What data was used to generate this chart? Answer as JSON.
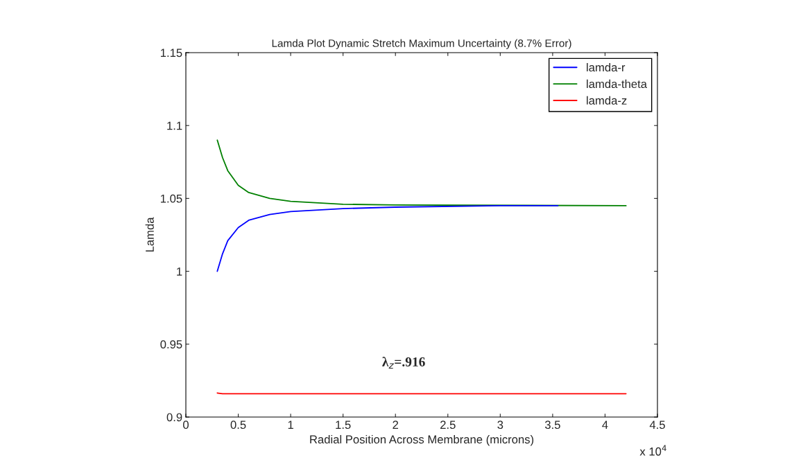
{
  "chart_data": {
    "type": "line",
    "title": "Lamda Plot Dynamic Stretch Maximum Uncertainty (8.7% Error)",
    "xlabel": "Radial Position Across Membrane (microns)",
    "ylabel": "Lamda",
    "xlim": [
      0,
      4.5
    ],
    "xticks": [
      0,
      0.5,
      1,
      1.5,
      2,
      2.5,
      3,
      3.5,
      4,
      4.5
    ],
    "ylim": [
      0.9,
      1.15
    ],
    "yticks": [
      0.9,
      0.95,
      1,
      1.05,
      1.1,
      1.15
    ],
    "grid": false,
    "legend": "top right",
    "series": [
      {
        "name": "lamda-r",
        "color": "#0000ff",
        "x": [
          0.3,
          0.35,
          0.4,
          0.5,
          0.6,
          0.8,
          1.0,
          1.5,
          2.0,
          3.0,
          3.55
        ],
        "values": [
          1.0,
          1.012,
          1.021,
          1.03,
          1.035,
          1.039,
          1.041,
          1.043,
          1.044,
          1.045,
          1.045
        ]
      },
      {
        "name": "lamda-theta",
        "color": "#008000",
        "x": [
          0.3,
          0.35,
          0.4,
          0.5,
          0.6,
          0.8,
          1.0,
          1.5,
          2.0,
          4.2
        ],
        "values": [
          1.09,
          1.078,
          1.069,
          1.059,
          1.054,
          1.05,
          1.048,
          1.046,
          1.0455,
          1.045
        ]
      },
      {
        "name": "lamda-z",
        "color": "#ff0000",
        "x": [
          0.3,
          0.35,
          4.2
        ],
        "values": [
          0.9165,
          0.916,
          0.916
        ]
      }
    ],
    "annotations": [
      "λ$_{z}$=.916",
      "x 10$^{4}$"
    ]
  }
}
